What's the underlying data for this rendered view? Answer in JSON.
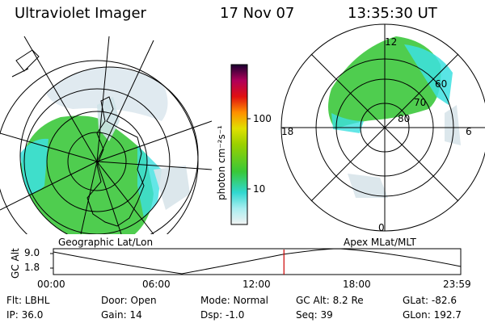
{
  "header": {
    "instrument": "Ultraviolet Imager",
    "date": "17 Nov 07",
    "time": "13:35:30 UT"
  },
  "colorbar": {
    "unit_label": "photon cm⁻²s⁻¹",
    "ticks": [
      "100",
      "10"
    ]
  },
  "left_panel": {
    "label": "Geographic Lat/Lon"
  },
  "right_panel": {
    "label": "Apex MLat/MLT",
    "mlt_labels": {
      "top": "12",
      "left": "18",
      "right": "6",
      "bottom": "0"
    },
    "lat_labels": [
      "60",
      "70",
      "80"
    ]
  },
  "timeline": {
    "ylabel": "GC Alt",
    "yticks": [
      "9.0",
      "1.8"
    ],
    "xticks": [
      "00:00",
      "06:00",
      "12:00",
      "18:00",
      "23:59"
    ],
    "marker_fraction": 0.566
  },
  "info": {
    "filter": "Flt: LBHL",
    "ip": "IP: 36.0",
    "door": "Door: Open",
    "gain": "Gain: 14",
    "mode": "Mode: Normal",
    "dsp": "Dsp:   -1.0",
    "gc_alt": "GC Alt: 8.2 Re",
    "seq": "Seq: 39",
    "glat": "GLat: -82.6",
    "glon": "GLon: 192.7"
  },
  "colors": {
    "aurora_green": "#3cc83c",
    "aurora_cyan": "#3ce0e0",
    "timeline_marker": "#cc0000"
  }
}
